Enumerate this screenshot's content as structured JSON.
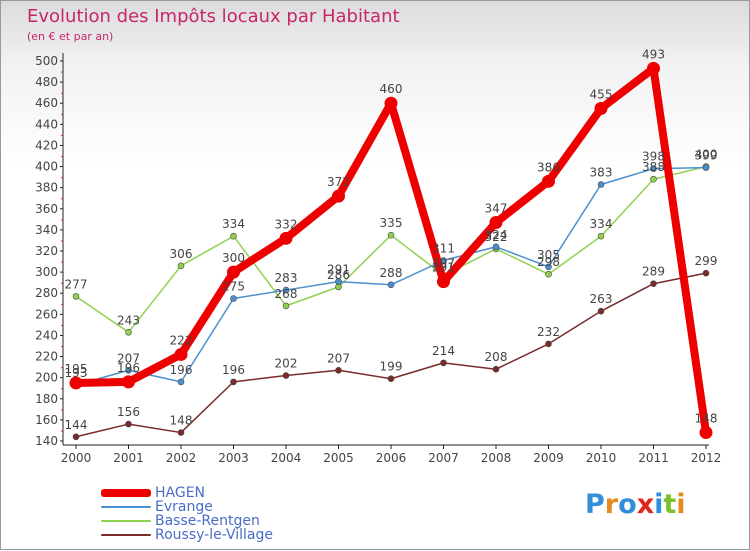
{
  "header": {
    "title": "Evolution des Impôts locaux par Habitant",
    "subtitle": "(en € et par an)"
  },
  "brand": {
    "letters": [
      {
        "ch": "P",
        "color": "#2f8fd8"
      },
      {
        "ch": "r",
        "color": "#e38b1c"
      },
      {
        "ch": "o",
        "color": "#2f8fd8"
      },
      {
        "ch": "x",
        "color": "#e0261d"
      },
      {
        "ch": "i",
        "color": "#2f8fd8"
      },
      {
        "ch": "t",
        "color": "#7bbf2a"
      },
      {
        "ch": "i",
        "color": "#e38b1c"
      }
    ]
  },
  "chart_data": {
    "type": "line",
    "title": "Evolution des Impôts locaux par Habitant",
    "subtitle": "(en € et par an)",
    "xlabel": "",
    "ylabel": "",
    "categories": [
      "2000",
      "2001",
      "2002",
      "2003",
      "2004",
      "2005",
      "2006",
      "2007",
      "2008",
      "2009",
      "2010",
      "2011",
      "2012"
    ],
    "y_ticks": [
      140,
      160,
      180,
      200,
      220,
      240,
      260,
      280,
      300,
      320,
      340,
      360,
      380,
      400,
      420,
      440,
      460,
      480,
      500
    ],
    "ylim": [
      140,
      500
    ],
    "grid": false,
    "legend_position": "bottom-left",
    "series": [
      {
        "name": "Roussy-le-Village",
        "color": "#7a2a2a",
        "values": [
          144,
          156,
          148,
          196,
          202,
          207,
          199,
          214,
          208,
          232,
          263,
          289,
          299
        ]
      },
      {
        "name": "Basse-Rentgen",
        "color": "#8fd14f",
        "values": [
          277,
          243,
          306,
          334,
          268,
          286,
          335,
          297,
          322,
          298,
          334,
          388,
          400
        ]
      },
      {
        "name": "Evrange",
        "color": "#4a8fd0",
        "values": [
          193,
          207,
          196,
          275,
          283,
          291,
          288,
          311,
          324,
          305,
          383,
          398,
          399
        ]
      },
      {
        "name": "HAGEN",
        "color": "#ee0000",
        "values": [
          195,
          196,
          222,
          300,
          332,
          372,
          460,
          291,
          347,
          386,
          455,
          493,
          148
        ]
      }
    ]
  }
}
